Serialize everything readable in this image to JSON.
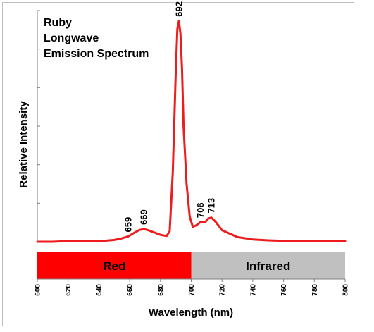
{
  "chart_data": {
    "type": "line",
    "title_lines": [
      "Ruby",
      "Longwave",
      "Emission Spectrum"
    ],
    "xlabel": "Wavelength (nm)",
    "ylabel": "Relative Intensity",
    "xlim": [
      600,
      800
    ],
    "ylim": [
      0,
      1.0
    ],
    "x_ticks": [
      600,
      620,
      640,
      660,
      680,
      700,
      720,
      740,
      760,
      780,
      800
    ],
    "y_tick_count": 6,
    "grid": false,
    "legend": "none",
    "line_color": "#ee1c1c",
    "series": [
      {
        "values_x": [
          600,
          610,
          620,
          630,
          640,
          645,
          650,
          655,
          659,
          662,
          666,
          669,
          672,
          676,
          680,
          684,
          686,
          688,
          690,
          691,
          692,
          693,
          694,
          695,
          697,
          699,
          701,
          703,
          706,
          709,
          711,
          713,
          716,
          720,
          725,
          730,
          740,
          750,
          760,
          770,
          780,
          790,
          800
        ],
        "values_y": [
          0.0,
          0.0,
          0.003,
          0.003,
          0.003,
          0.005,
          0.008,
          0.015,
          0.023,
          0.035,
          0.05,
          0.055,
          0.05,
          0.04,
          0.03,
          0.025,
          0.045,
          0.3,
          0.75,
          0.92,
          0.955,
          0.9,
          0.75,
          0.5,
          0.25,
          0.11,
          0.065,
          0.07,
          0.085,
          0.085,
          0.1,
          0.105,
          0.085,
          0.05,
          0.035,
          0.02,
          0.01,
          0.006,
          0.004,
          0.003,
          0.003,
          0.003,
          0.003
        ]
      }
    ],
    "annotations": [
      {
        "text": "659",
        "x": 659,
        "y": 0.023
      },
      {
        "text": "669",
        "x": 669,
        "y": 0.055
      },
      {
        "text": "692",
        "x": 692,
        "y": 0.955
      },
      {
        "text": "706",
        "x": 706,
        "y": 0.085
      },
      {
        "text": "713",
        "x": 713,
        "y": 0.105
      }
    ],
    "bands": [
      {
        "text": "Red",
        "from": 600,
        "to": 700,
        "color": "#ff0000"
      },
      {
        "text": "Infrared",
        "from": 700,
        "to": 800,
        "color": "#c0c0c0"
      }
    ]
  }
}
